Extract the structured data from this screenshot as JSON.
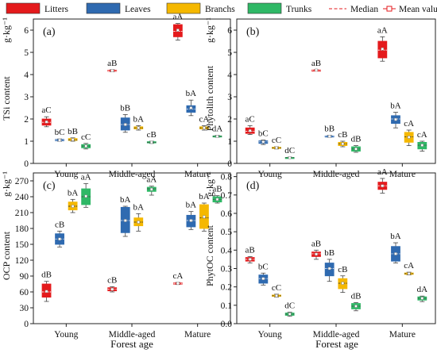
{
  "legend": {
    "items": [
      {
        "label": "Litters",
        "color": "#e41a1c",
        "kind": "box"
      },
      {
        "label": "Leaves",
        "color": "#2f6ab0",
        "kind": "box"
      },
      {
        "label": "Branchs",
        "color": "#f5b800",
        "kind": "box"
      },
      {
        "label": "Trunks",
        "color": "#2fb866",
        "kind": "box"
      },
      {
        "label": "Median",
        "color": "#e41a1c",
        "kind": "dash"
      },
      {
        "label": "Mean value",
        "color": "#e41a1c",
        "kind": "square"
      }
    ]
  },
  "xlabel": "Forest age",
  "categories": [
    "Young",
    "Middle-aged",
    "Mature"
  ],
  "chart_data": [
    {
      "type": "box",
      "panel": "(a)",
      "ylabel": "TSi content",
      "unit": "g·kg⁻¹",
      "ylim": [
        0,
        6.5
      ],
      "yticks": [
        0,
        1,
        2,
        3,
        4,
        5,
        6
      ],
      "categories": [
        "Young",
        "Middle-aged",
        "Mature"
      ],
      "series": [
        {
          "name": "Litters",
          "boxes": [
            {
              "min": 1.65,
              "q1": 1.72,
              "median": 1.85,
              "q3": 2.0,
              "max": 2.1,
              "mean": 1.87,
              "label": "aC"
            },
            {
              "min": 4.13,
              "q1": 4.15,
              "median": 4.17,
              "q3": 4.2,
              "max": 4.22,
              "mean": 4.17,
              "label": "aB"
            },
            {
              "min": 5.55,
              "q1": 5.7,
              "median": 5.95,
              "q3": 6.25,
              "max": 6.3,
              "mean": 6.0,
              "label": "aA"
            }
          ]
        },
        {
          "name": "Leaves",
          "boxes": [
            {
              "min": 1.0,
              "q1": 1.02,
              "median": 1.05,
              "q3": 1.08,
              "max": 1.1,
              "mean": 1.05,
              "label": "bC"
            },
            {
              "min": 1.4,
              "q1": 1.5,
              "median": 1.75,
              "q3": 2.05,
              "max": 2.2,
              "mean": 1.75,
              "label": "bB"
            },
            {
              "min": 2.15,
              "q1": 2.3,
              "median": 2.45,
              "q3": 2.6,
              "max": 2.85,
              "mean": 2.5,
              "label": "bA"
            }
          ]
        },
        {
          "name": "Branchs",
          "boxes": [
            {
              "min": 1.0,
              "q1": 1.03,
              "median": 1.06,
              "q3": 1.12,
              "max": 1.15,
              "mean": 1.07,
              "label": "bB"
            },
            {
              "min": 1.5,
              "q1": 1.55,
              "median": 1.6,
              "q3": 1.65,
              "max": 1.7,
              "mean": 1.6,
              "label": "bA"
            },
            {
              "min": 1.5,
              "q1": 1.55,
              "median": 1.6,
              "q3": 1.65,
              "max": 1.7,
              "mean": 1.6,
              "label": "cA"
            }
          ]
        },
        {
          "name": "Trunks",
          "boxes": [
            {
              "min": 0.65,
              "q1": 0.7,
              "median": 0.78,
              "q3": 0.85,
              "max": 0.9,
              "mean": 0.78,
              "label": "cC"
            },
            {
              "min": 0.9,
              "q1": 0.92,
              "median": 0.95,
              "q3": 0.98,
              "max": 1.0,
              "mean": 0.95,
              "label": "cB"
            },
            {
              "min": 1.18,
              "q1": 1.2,
              "median": 1.22,
              "q3": 1.24,
              "max": 1.26,
              "mean": 1.22,
              "label": "dA"
            }
          ]
        }
      ]
    },
    {
      "type": "box",
      "panel": "(b)",
      "ylabel": "Phytolith content",
      "unit": "g·kg⁻¹",
      "ylim": [
        0,
        6.5
      ],
      "yticks": [
        0,
        1,
        2,
        3,
        4,
        5,
        6
      ],
      "categories": [
        "Young",
        "Middle-aged",
        "Mature"
      ],
      "series": [
        {
          "name": "Litters",
          "boxes": [
            {
              "min": 1.3,
              "q1": 1.35,
              "median": 1.45,
              "q3": 1.6,
              "max": 1.7,
              "mean": 1.47,
              "label": "aC"
            },
            {
              "min": 4.18,
              "q1": 4.19,
              "median": 4.2,
              "q3": 4.21,
              "max": 4.22,
              "mean": 4.2,
              "label": "aB"
            },
            {
              "min": 4.6,
              "q1": 4.75,
              "median": 5.1,
              "q3": 5.5,
              "max": 5.7,
              "mean": 5.15,
              "label": "aA"
            }
          ]
        },
        {
          "name": "Leaves",
          "boxes": [
            {
              "min": 0.85,
              "q1": 0.9,
              "median": 0.97,
              "q3": 1.02,
              "max": 1.05,
              "mean": 0.97,
              "label": "bC"
            },
            {
              "min": 1.18,
              "q1": 1.2,
              "median": 1.22,
              "q3": 1.24,
              "max": 1.26,
              "mean": 1.22,
              "label": "bB"
            },
            {
              "min": 1.6,
              "q1": 1.8,
              "median": 2.0,
              "q3": 2.15,
              "max": 2.3,
              "mean": 1.98,
              "label": "bA"
            }
          ]
        },
        {
          "name": "Branchs",
          "boxes": [
            {
              "min": 0.65,
              "q1": 0.67,
              "median": 0.7,
              "q3": 0.73,
              "max": 0.75,
              "mean": 0.7,
              "label": "cC"
            },
            {
              "min": 0.75,
              "q1": 0.8,
              "median": 0.88,
              "q3": 0.95,
              "max": 1.0,
              "mean": 0.88,
              "label": "cB"
            },
            {
              "min": 0.8,
              "q1": 0.95,
              "median": 1.2,
              "q3": 1.4,
              "max": 1.5,
              "mean": 1.18,
              "label": "cA"
            }
          ]
        },
        {
          "name": "Trunks",
          "boxes": [
            {
              "min": 0.24,
              "q1": 0.25,
              "median": 0.26,
              "q3": 0.27,
              "max": 0.28,
              "mean": 0.26,
              "label": "dC"
            },
            {
              "min": 0.5,
              "q1": 0.55,
              "median": 0.65,
              "q3": 0.75,
              "max": 0.8,
              "mean": 0.65,
              "label": "dB"
            },
            {
              "min": 0.55,
              "q1": 0.65,
              "median": 0.82,
              "q3": 0.95,
              "max": 1.0,
              "mean": 0.82,
              "label": "cA"
            }
          ]
        }
      ]
    },
    {
      "type": "box",
      "panel": "(c)",
      "ylabel": "OCP content",
      "unit": "g·kg⁻¹",
      "ylim": [
        0,
        285
      ],
      "yticks": [
        0,
        30,
        60,
        90,
        120,
        150,
        180,
        210,
        240,
        270
      ],
      "categories": [
        "Young",
        "Middle-aged",
        "Mature"
      ],
      "series": [
        {
          "name": "Litters",
          "boxes": [
            {
              "min": 42,
              "q1": 50,
              "median": 60,
              "q3": 75,
              "max": 80,
              "mean": 61,
              "label": "dB"
            },
            {
              "min": 60,
              "q1": 62,
              "median": 65,
              "q3": 68,
              "max": 70,
              "mean": 65,
              "label": "cB"
            },
            {
              "min": 74,
              "q1": 75,
              "median": 76,
              "q3": 77,
              "max": 78,
              "mean": 76,
              "label": "cA"
            }
          ]
        },
        {
          "name": "Leaves",
          "boxes": [
            {
              "min": 145,
              "q1": 150,
              "median": 160,
              "q3": 170,
              "max": 175,
              "mean": 160,
              "label": "cB"
            },
            {
              "min": 165,
              "q1": 172,
              "median": 195,
              "q3": 220,
              "max": 222,
              "mean": 195,
              "label": "bA"
            },
            {
              "min": 178,
              "q1": 183,
              "median": 195,
              "q3": 205,
              "max": 212,
              "mean": 195,
              "label": "bA"
            }
          ]
        },
        {
          "name": "Branchs",
          "boxes": [
            {
              "min": 210,
              "q1": 215,
              "median": 222,
              "q3": 230,
              "max": 235,
              "mean": 222,
              "label": "bA"
            },
            {
              "min": 175,
              "q1": 185,
              "median": 192,
              "q3": 200,
              "max": 208,
              "mean": 192,
              "label": "bA"
            },
            {
              "min": 175,
              "q1": 180,
              "median": 200,
              "q3": 225,
              "max": 228,
              "mean": 202,
              "label": "bA"
            }
          ]
        },
        {
          "name": "Trunks",
          "boxes": [
            {
              "min": 220,
              "q1": 225,
              "median": 240,
              "q3": 255,
              "max": 265,
              "mean": 241,
              "label": "aA"
            },
            {
              "min": 243,
              "q1": 250,
              "median": 255,
              "q3": 258,
              "max": 260,
              "mean": 254,
              "label": "aA"
            },
            {
              "min": 228,
              "q1": 230,
              "median": 235,
              "q3": 240,
              "max": 242,
              "mean": 235,
              "label": "aB"
            }
          ]
        }
      ]
    },
    {
      "type": "box",
      "panel": "(d)",
      "ylabel": "PhytOC content",
      "unit": "g·kg⁻¹",
      "ylim": [
        0,
        0.82
      ],
      "yticks": [
        0.0,
        0.1,
        0.2,
        0.3,
        0.4,
        0.5,
        0.6,
        0.7,
        0.8
      ],
      "categories": [
        "Young",
        "Middle-aged",
        "Mature"
      ],
      "series": [
        {
          "name": "Litters",
          "boxes": [
            {
              "min": 0.33,
              "q1": 0.34,
              "median": 0.35,
              "q3": 0.36,
              "max": 0.365,
              "mean": 0.35,
              "label": "aB"
            },
            {
              "min": 0.35,
              "q1": 0.365,
              "median": 0.38,
              "q3": 0.39,
              "max": 0.4,
              "mean": 0.378,
              "label": "aB"
            },
            {
              "min": 0.71,
              "q1": 0.73,
              "median": 0.75,
              "q3": 0.77,
              "max": 0.79,
              "mean": 0.75,
              "label": "aA"
            }
          ]
        },
        {
          "name": "Leaves",
          "boxes": [
            {
              "min": 0.21,
              "q1": 0.22,
              "median": 0.245,
              "q3": 0.265,
              "max": 0.275,
              "mean": 0.245,
              "label": "bC"
            },
            {
              "min": 0.23,
              "q1": 0.26,
              "median": 0.3,
              "q3": 0.33,
              "max": 0.35,
              "mean": 0.3,
              "label": "bB"
            },
            {
              "min": 0.33,
              "q1": 0.34,
              "median": 0.38,
              "q3": 0.42,
              "max": 0.44,
              "mean": 0.38,
              "label": "bA"
            }
          ]
        },
        {
          "name": "Branchs",
          "boxes": [
            {
              "min": 0.145,
              "q1": 0.148,
              "median": 0.152,
              "q3": 0.156,
              "max": 0.16,
              "mean": 0.152,
              "label": "cC"
            },
            {
              "min": 0.17,
              "q1": 0.19,
              "median": 0.22,
              "q3": 0.245,
              "max": 0.26,
              "mean": 0.22,
              "label": "cB"
            },
            {
              "min": 0.265,
              "q1": 0.268,
              "median": 0.272,
              "q3": 0.276,
              "max": 0.28,
              "mean": 0.272,
              "label": "cA"
            }
          ]
        },
        {
          "name": "Trunks",
          "boxes": [
            {
              "min": 0.04,
              "q1": 0.045,
              "median": 0.052,
              "q3": 0.058,
              "max": 0.062,
              "mean": 0.052,
              "label": "dC"
            },
            {
              "min": 0.07,
              "q1": 0.08,
              "median": 0.095,
              "q3": 0.11,
              "max": 0.115,
              "mean": 0.095,
              "label": "dB"
            },
            {
              "min": 0.12,
              "q1": 0.128,
              "median": 0.138,
              "q3": 0.146,
              "max": 0.15,
              "mean": 0.138,
              "label": "dA"
            }
          ]
        }
      ]
    }
  ]
}
